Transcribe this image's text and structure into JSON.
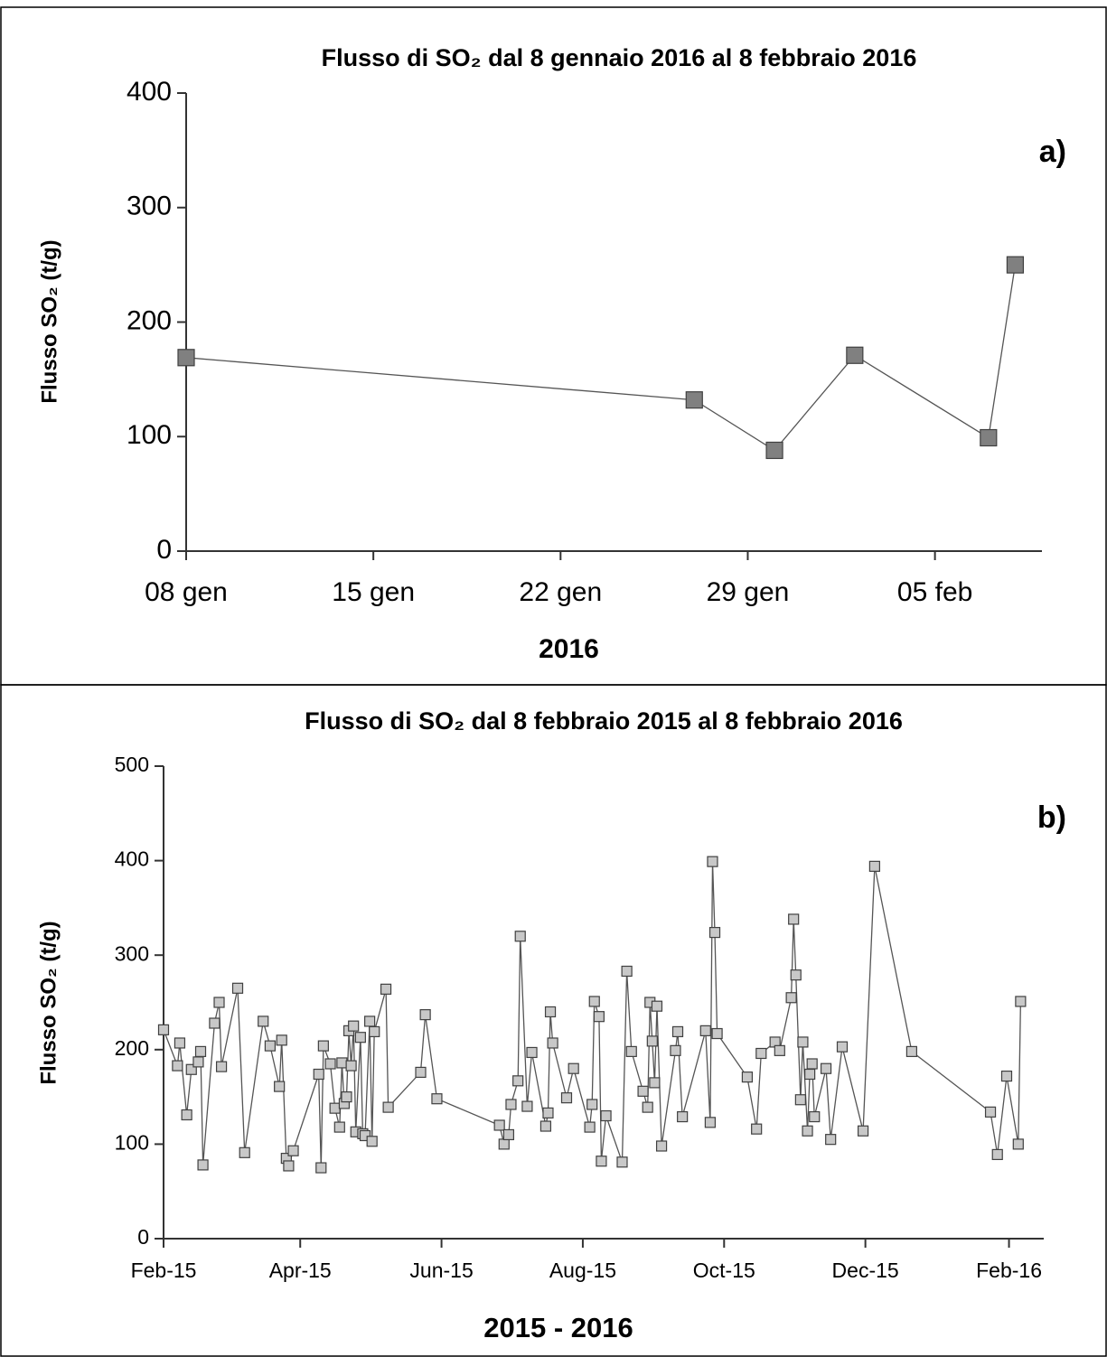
{
  "chart_data": [
    {
      "type": "line",
      "title": "Flusso di SO₂ dal 8 gennaio 2016 al 8 febbraio 2016",
      "y_label": "Flusso SO₂ (t/g)",
      "x_label": "2016",
      "annotation": "a)",
      "x": [
        "2016-01-08",
        "2016-01-27",
        "2016-01-30",
        "2016-02-02",
        "2016-02-07",
        "2016-02-08"
      ],
      "values": [
        169,
        132,
        88,
        171,
        99,
        250
      ],
      "color": "#555555",
      "marker_color": "#808080",
      "xlim": [
        "2016-01-08",
        "2016-02-09"
      ],
      "xticks": [
        {
          "value": "2016-01-08",
          "label": "08 gen"
        },
        {
          "value": "2016-01-15",
          "label": "15 gen"
        },
        {
          "value": "2016-01-22",
          "label": "22 gen"
        },
        {
          "value": "2016-01-29",
          "label": "29 gen"
        },
        {
          "value": "2016-02-05",
          "label": "05 feb"
        }
      ],
      "ylim": [
        0,
        400
      ],
      "yticks": [
        0,
        100,
        200,
        300,
        400
      ]
    },
    {
      "type": "line",
      "title": "Flusso di SO₂ dal 8 febbraio 2015 al 8 febbraio 2016",
      "y_label": "Flusso SO₂ (t/g)",
      "x_label": "2015 - 2016",
      "annotation": "b)",
      "x": [
        "2015-02-01",
        "2015-02-07",
        "2015-02-08",
        "2015-02-11",
        "2015-02-13",
        "2015-02-16",
        "2015-02-17",
        "2015-02-18",
        "2015-02-23",
        "2015-02-25",
        "2015-02-26",
        "2015-03-05",
        "2015-03-08",
        "2015-03-16",
        "2015-03-19",
        "2015-03-23",
        "2015-03-24",
        "2015-03-26",
        "2015-03-27",
        "2015-03-29",
        "2015-04-09",
        "2015-04-10",
        "2015-04-11",
        "2015-04-14",
        "2015-04-16",
        "2015-04-18",
        "2015-04-19",
        "2015-04-20",
        "2015-04-21",
        "2015-04-22",
        "2015-04-23",
        "2015-04-24",
        "2015-04-25",
        "2015-04-27",
        "2015-04-28",
        "2015-04-29",
        "2015-05-01",
        "2015-05-02",
        "2015-05-03",
        "2015-05-08",
        "2015-05-09",
        "2015-05-23",
        "2015-05-25",
        "2015-05-30",
        "2015-06-26",
        "2015-06-28",
        "2015-06-30",
        "2015-07-01",
        "2015-07-04",
        "2015-07-05",
        "2015-07-08",
        "2015-07-10",
        "2015-07-16",
        "2015-07-17",
        "2015-07-18",
        "2015-07-19",
        "2015-07-25",
        "2015-07-28",
        "2015-08-04",
        "2015-08-05",
        "2015-08-06",
        "2015-08-08",
        "2015-08-09",
        "2015-08-11",
        "2015-08-18",
        "2015-08-20",
        "2015-08-22",
        "2015-08-27",
        "2015-08-29",
        "2015-08-30",
        "2015-08-31",
        "2015-09-01",
        "2015-09-02",
        "2015-09-04",
        "2015-09-10",
        "2015-09-11",
        "2015-09-13",
        "2015-09-23",
        "2015-09-25",
        "2015-09-26",
        "2015-09-27",
        "2015-09-28",
        "2015-10-11",
        "2015-10-15",
        "2015-10-17",
        "2015-10-23",
        "2015-10-25",
        "2015-10-30",
        "2015-10-31",
        "2015-11-01",
        "2015-11-03",
        "2015-11-04",
        "2015-11-06",
        "2015-11-07",
        "2015-11-08",
        "2015-11-09",
        "2015-11-14",
        "2015-11-16",
        "2015-11-21",
        "2015-11-30",
        "2015-12-05",
        "2015-12-21",
        "2016-01-24",
        "2016-01-27",
        "2016-01-31",
        "2016-02-05",
        "2016-02-06"
      ],
      "values": [
        221,
        183,
        207,
        131,
        179,
        187,
        198,
        78,
        228,
        250,
        182,
        265,
        91,
        230,
        204,
        161,
        210,
        85,
        77,
        93,
        174,
        75,
        204,
        185,
        138,
        118,
        186,
        143,
        150,
        220,
        183,
        225,
        113,
        213,
        111,
        109,
        230,
        103,
        219,
        264,
        139,
        176,
        237,
        148,
        120,
        100,
        110,
        142,
        167,
        320,
        140,
        197,
        119,
        133,
        240,
        207,
        149,
        180,
        118,
        142,
        251,
        235,
        82,
        130,
        81,
        283,
        198,
        156,
        139,
        250,
        209,
        165,
        246,
        98,
        199,
        219,
        129,
        220,
        123,
        399,
        324,
        217,
        171,
        116,
        196,
        208,
        199,
        255,
        338,
        279,
        147,
        208,
        114,
        174,
        185,
        129,
        180,
        105,
        203,
        114,
        394,
        198,
        134,
        89,
        172,
        100,
        251
      ],
      "color": "#555555",
      "marker_color": "#c8c8c8",
      "xlim": [
        "2015-02-01",
        "2016-02-16"
      ],
      "xticks": [
        {
          "value": "2015-02-01",
          "label": "Feb-15"
        },
        {
          "value": "2015-04-01",
          "label": "Apr-15"
        },
        {
          "value": "2015-06-01",
          "label": "Jun-15"
        },
        {
          "value": "2015-08-01",
          "label": "Aug-15"
        },
        {
          "value": "2015-10-01",
          "label": "Oct-15"
        },
        {
          "value": "2015-12-01",
          "label": "Dec-15"
        },
        {
          "value": "2016-02-01",
          "label": "Feb-16"
        }
      ],
      "ylim": [
        0,
        500
      ],
      "yticks": [
        0,
        100,
        200,
        300,
        400,
        500
      ]
    }
  ]
}
